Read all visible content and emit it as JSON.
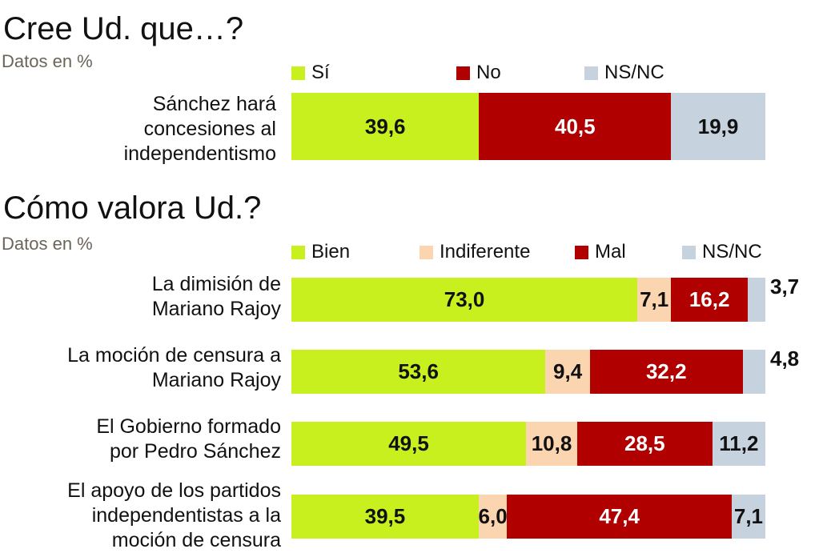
{
  "charts": [
    {
      "title": "Cree Ud. que…?",
      "subtitle": "Datos en %",
      "legend": [
        {
          "label": "Sí",
          "color": "#c8ef1e"
        },
        {
          "label": "No",
          "color": "#b00000"
        },
        {
          "label": "NS/NC",
          "color": "#c7d2df"
        }
      ],
      "rows": [
        {
          "label_lines": [
            "Sánchez hará",
            "concesiones al",
            "independentismo"
          ],
          "values": [
            39.6,
            40.5,
            19.9
          ],
          "value_labels": [
            "39,6",
            "40,5",
            "19,9"
          ]
        }
      ]
    },
    {
      "title": "Cómo valora Ud.?",
      "subtitle": "Datos en %",
      "legend": [
        {
          "label": "Bien",
          "color": "#c8ef1e"
        },
        {
          "label": "Indiferente",
          "color": "#fbd5b0"
        },
        {
          "label": "Mal",
          "color": "#b00000"
        },
        {
          "label": "NS/NC",
          "color": "#c7d2df"
        }
      ],
      "rows": [
        {
          "label_lines": [
            "La dimisión de",
            "Mariano Rajoy"
          ],
          "values": [
            73.0,
            7.1,
            16.2,
            3.7
          ],
          "value_labels": [
            "73,0",
            "7,1",
            "16,2",
            "3,7"
          ]
        },
        {
          "label_lines": [
            "La moción de censura a",
            "Mariano Rajoy"
          ],
          "values": [
            53.6,
            9.4,
            32.2,
            4.8
          ],
          "value_labels": [
            "53,6",
            "9,4",
            "32,2",
            "4,8"
          ]
        },
        {
          "label_lines": [
            "El Gobierno formado",
            "por Pedro Sánchez"
          ],
          "values": [
            49.5,
            10.8,
            28.5,
            11.2
          ],
          "value_labels": [
            "49,5",
            "10,8",
            "28,5",
            "11,2"
          ]
        },
        {
          "label_lines": [
            "El apoyo de los partidos",
            "independentistas a la",
            "moción de censura"
          ],
          "values": [
            39.5,
            6.0,
            47.4,
            7.1
          ],
          "value_labels": [
            "39,5",
            "6,0",
            "47,4",
            "7,1"
          ]
        }
      ]
    }
  ],
  "chart_data": [
    {
      "type": "bar",
      "stacked": true,
      "orientation": "horizontal",
      "title": "Cree Ud. que…?",
      "subtitle": "Datos en %",
      "categories": [
        "Sánchez hará concesiones al independentismo"
      ],
      "series": [
        {
          "name": "Sí",
          "values": [
            39.6
          ]
        },
        {
          "name": "No",
          "values": [
            40.5
          ]
        },
        {
          "name": "NS/NC",
          "values": [
            19.9
          ]
        }
      ],
      "xlim": [
        0,
        100
      ]
    },
    {
      "type": "bar",
      "stacked": true,
      "orientation": "horizontal",
      "title": "Cómo valora Ud.?",
      "subtitle": "Datos en %",
      "categories": [
        "La dimisión de Mariano Rajoy",
        "La moción de censura a Mariano Rajoy",
        "El Gobierno formado por Pedro Sánchez",
        "El apoyo de los partidos independentistas a la moción de censura"
      ],
      "series": [
        {
          "name": "Bien",
          "values": [
            73.0,
            53.6,
            49.5,
            39.5
          ]
        },
        {
          "name": "Indiferente",
          "values": [
            7.1,
            9.4,
            10.8,
            6.0
          ]
        },
        {
          "name": "Mal",
          "values": [
            16.2,
            32.2,
            28.5,
            47.4
          ]
        },
        {
          "name": "NS/NC",
          "values": [
            3.7,
            4.8,
            11.2,
            7.1
          ]
        }
      ],
      "xlim": [
        0,
        100
      ]
    }
  ]
}
